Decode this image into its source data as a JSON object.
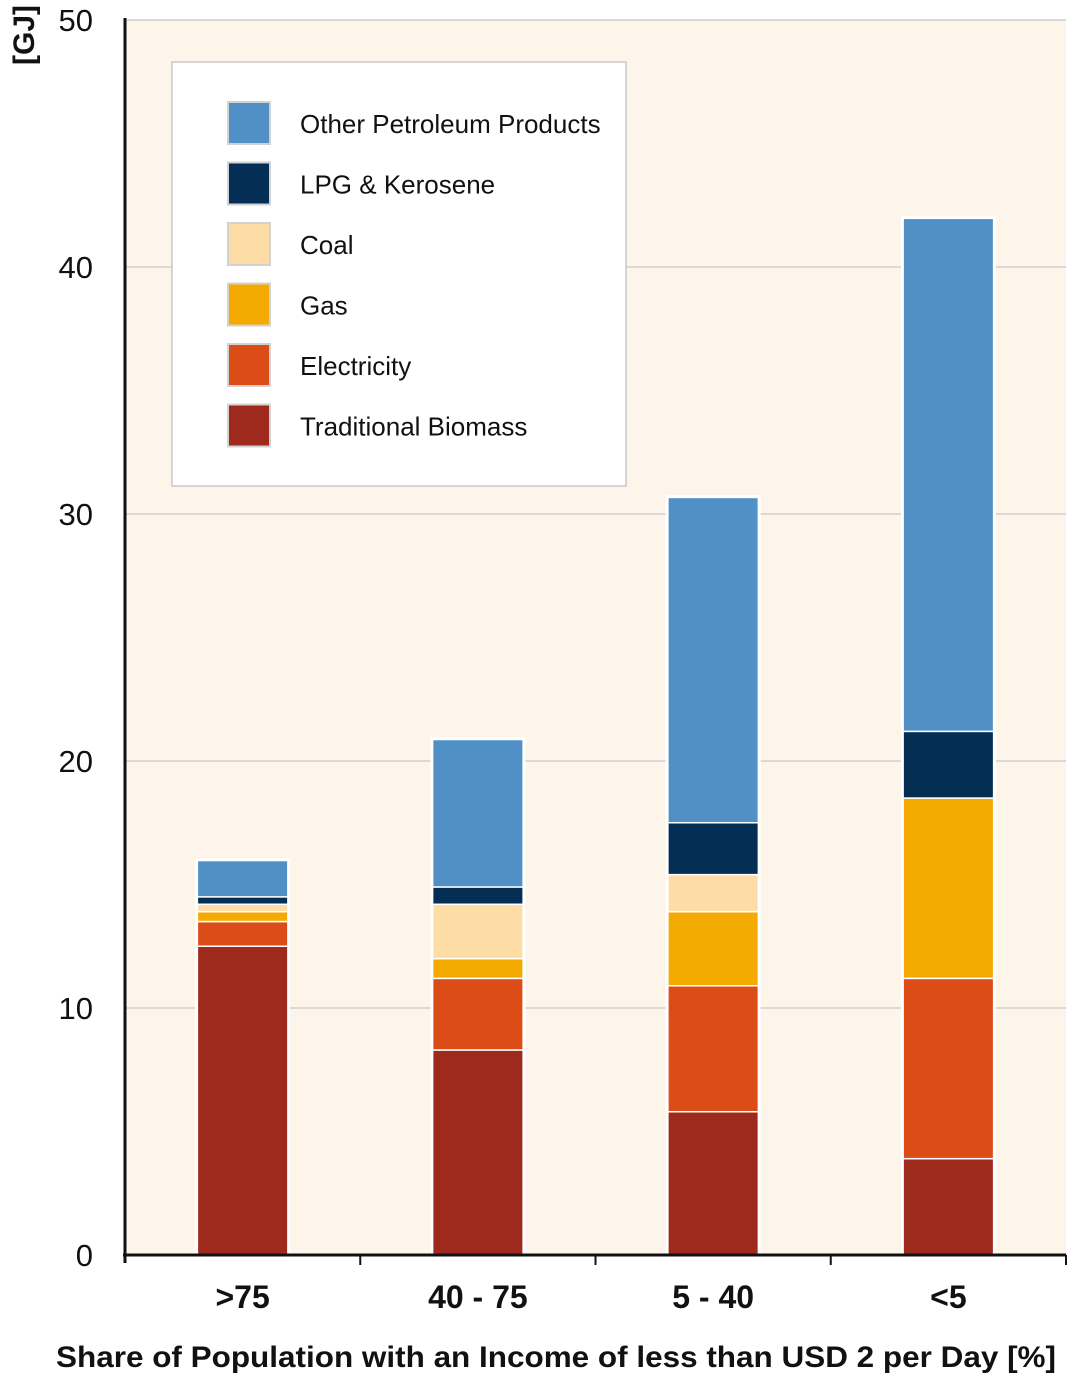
{
  "chart_data": {
    "type": "bar",
    "stacked": true,
    "categories": [
      ">75",
      "40 - 75",
      "5 - 40",
      "<5"
    ],
    "series": [
      {
        "name": "Traditional Biomass",
        "color": "#9e2a1e",
        "values": [
          12.5,
          8.3,
          5.8,
          3.9
        ]
      },
      {
        "name": "Electricity",
        "color": "#dc4c17",
        "values": [
          1.0,
          2.9,
          5.1,
          7.3
        ]
      },
      {
        "name": "Gas",
        "color": "#f4aa00",
        "values": [
          0.4,
          0.8,
          3.0,
          7.3
        ]
      },
      {
        "name": "Coal",
        "color": "#fddca5",
        "values": [
          0.3,
          2.2,
          1.5,
          0.0
        ]
      },
      {
        "name": "LPG & Kerosene",
        "color": "#052e55",
        "values": [
          0.3,
          0.7,
          2.1,
          2.7
        ]
      },
      {
        "name": "Other Petroleum Products",
        "color": "#5090c6",
        "values": [
          1.5,
          6.0,
          13.2,
          20.8
        ]
      }
    ],
    "legend_order": [
      "Other Petroleum Products",
      "LPG & Kerosene",
      "Coal",
      "Gas",
      "Electricity",
      "Traditional Biomass"
    ],
    "ylabel": "[GJ]",
    "xlabel": "Share of Population with an Income of less than USD 2 per Day [%]",
    "ylim": [
      0,
      50
    ],
    "yticks": [
      0,
      10,
      20,
      30,
      40,
      50
    ],
    "grid": true,
    "legend_position": "top-left",
    "background_color": "#fdf5e9",
    "grid_color": "#d0d0d0"
  }
}
